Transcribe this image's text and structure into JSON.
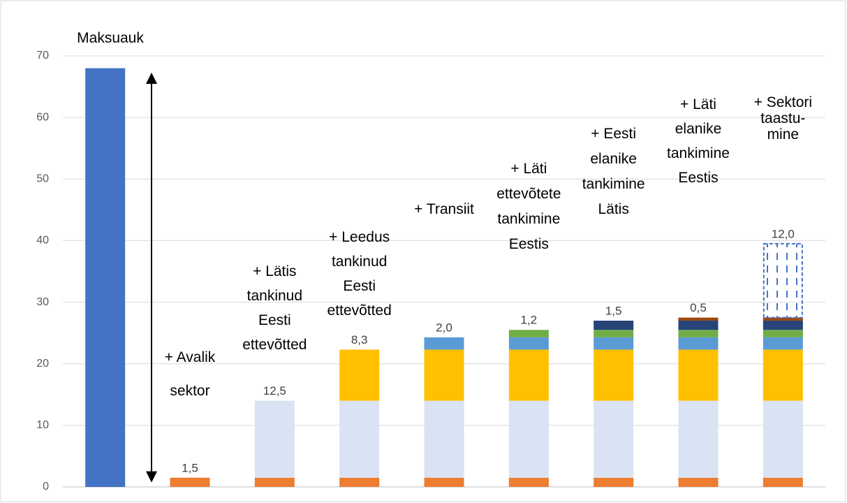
{
  "chart_data": {
    "type": "bar",
    "stacked": true,
    "categories": [
      "Maksuauk",
      "+ Avalik\nsektor",
      "+ Lätis\ntankinud\nEesti\nettevõtted",
      "+ Leedus\ntankinud\nEesti\nettevõtted",
      "+ Transiit",
      "+ Läti\nettevõtete\ntankimine\nEestis",
      "+ Eesti\nelanike\ntankimine\nLätis",
      "+ Läti\nelanike\ntankimine\nEestis",
      "+ Sektori\ntaastu-\nmine"
    ],
    "series": [
      {
        "color": "#4472c4",
        "values": [
          68,
          null,
          null,
          null,
          null,
          null,
          null,
          null,
          null
        ]
      },
      {
        "color": "#ed7d31",
        "values": [
          null,
          1.5,
          1.5,
          1.5,
          1.5,
          1.5,
          1.5,
          1.5,
          1.5
        ],
        "value_labels": [
          null,
          "1,5",
          null,
          null,
          null,
          null,
          null,
          null,
          null
        ]
      },
      {
        "color": "#dae3f3",
        "values": [
          null,
          null,
          12.5,
          12.5,
          12.5,
          12.5,
          12.5,
          12.5,
          12.5
        ],
        "value_labels": [
          null,
          null,
          "12,5",
          null,
          null,
          null,
          null,
          null,
          null
        ]
      },
      {
        "color": "#ffc000",
        "values": [
          null,
          null,
          null,
          8.3,
          8.3,
          8.3,
          8.3,
          8.3,
          8.3
        ],
        "value_labels": [
          null,
          null,
          null,
          "8,3",
          null,
          null,
          null,
          null,
          null
        ]
      },
      {
        "color": "#5b9bd5",
        "values": [
          null,
          null,
          null,
          null,
          2.0,
          2.0,
          2.0,
          2.0,
          2.0
        ],
        "value_labels": [
          null,
          null,
          null,
          null,
          "2,0",
          null,
          null,
          null,
          null
        ]
      },
      {
        "color": "#70ad47",
        "values": [
          null,
          null,
          null,
          null,
          null,
          1.2,
          1.2,
          1.2,
          1.2
        ],
        "value_labels": [
          null,
          null,
          null,
          null,
          null,
          "1,2",
          null,
          null,
          null
        ]
      },
      {
        "color": "#264478",
        "values": [
          null,
          null,
          null,
          null,
          null,
          null,
          1.5,
          1.5,
          1.5
        ],
        "value_labels": [
          null,
          null,
          null,
          null,
          null,
          null,
          "1,5",
          null,
          null
        ]
      },
      {
        "color": "#9e480e",
        "values": [
          null,
          null,
          null,
          null,
          null,
          null,
          null,
          0.5,
          0.5
        ],
        "value_labels": [
          null,
          null,
          null,
          null,
          null,
          null,
          null,
          "0,5",
          null
        ]
      },
      {
        "color": "#4472c4",
        "style": "dashed",
        "values": [
          null,
          null,
          null,
          null,
          null,
          null,
          null,
          null,
          12.0
        ],
        "value_labels": [
          null,
          null,
          null,
          null,
          null,
          null,
          null,
          null,
          "12,0"
        ]
      }
    ],
    "ylim": [
      0,
      70
    ],
    "yticks": [
      0,
      10,
      20,
      30,
      40,
      50,
      60,
      70
    ],
    "grid": true
  }
}
